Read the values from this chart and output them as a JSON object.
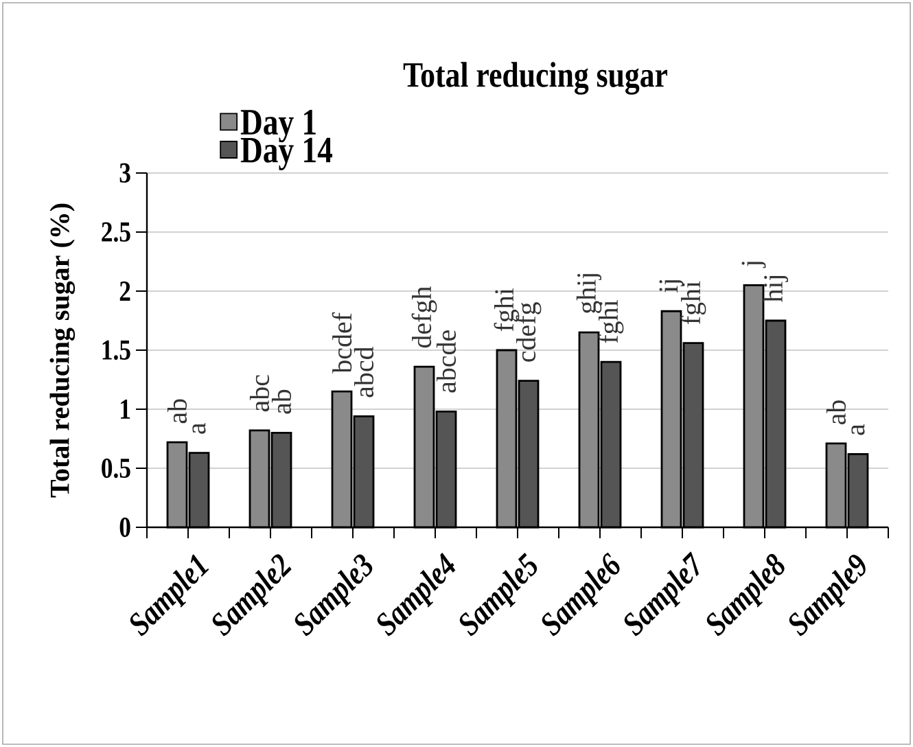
{
  "chart_data": {
    "type": "bar",
    "title": "Total reducing sugar",
    "ylabel": "Total reducing sugar (%)",
    "categories": [
      "Sample1",
      "Sample2",
      "Sample3",
      "Sample4",
      "Sample5",
      "Sample6",
      "Sample7",
      "Sample8",
      "Sample9"
    ],
    "series": [
      {
        "name": "Day 1",
        "color": "#8a8a8a",
        "values": [
          0.72,
          0.82,
          1.15,
          1.36,
          1.5,
          1.65,
          1.83,
          2.05,
          0.71
        ],
        "value_labels": [
          "ab",
          "abc",
          "bcdef",
          "defgh",
          "fghi",
          "ghij",
          "ij",
          "j",
          "ab"
        ]
      },
      {
        "name": "Day 14",
        "color": "#555555",
        "values": [
          0.63,
          0.8,
          0.94,
          0.98,
          1.24,
          1.4,
          1.56,
          1.75,
          0.62
        ],
        "value_labels": [
          "a",
          "ab",
          "abcd",
          "abcde",
          "cdefg",
          "fghi",
          "fghi",
          "hij",
          "a"
        ]
      }
    ],
    "ylim": [
      0,
      3
    ],
    "yticks": [
      0,
      0.5,
      1,
      1.5,
      2,
      2.5,
      3
    ],
    "grid": "y",
    "legend": "top left"
  }
}
